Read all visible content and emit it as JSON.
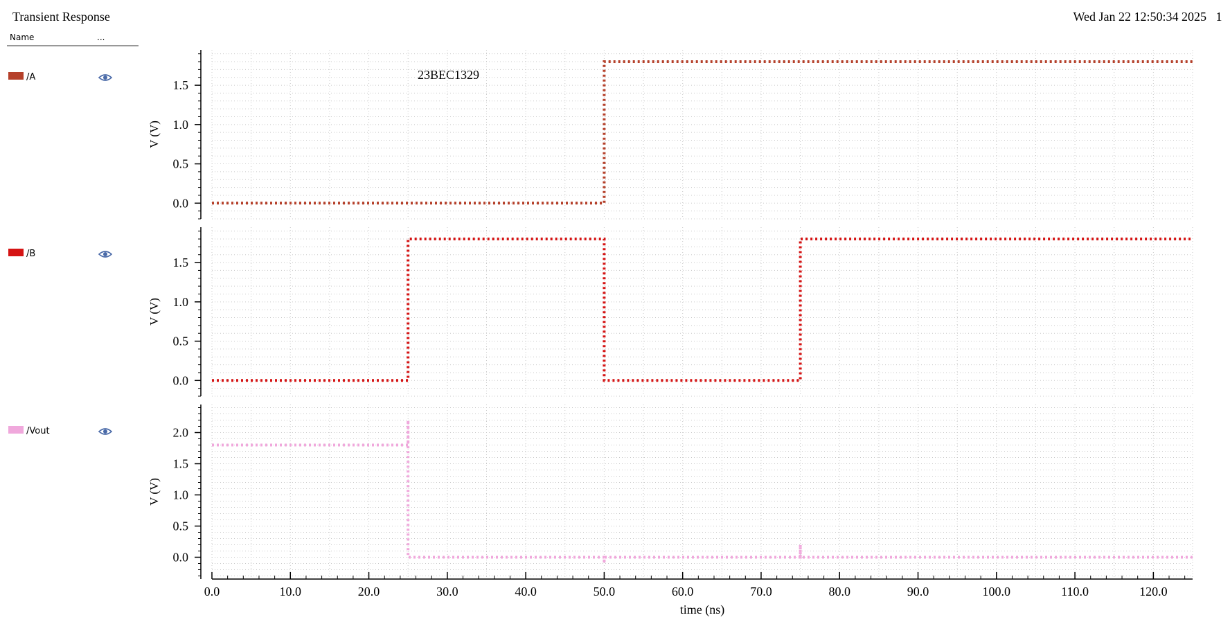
{
  "window": {
    "title": "Transient Response",
    "timestamp": "Wed Jan 22 12:50:34 2025",
    "page_number": "1"
  },
  "legend_header": {
    "name_label": "Name",
    "more_label": "..."
  },
  "annotation": "23BEC1329",
  "colors": {
    "A": "#b5402a",
    "B": "#d51414",
    "Vout": "#f0a8dc",
    "grid": "#c8c8c8",
    "axis": "#000000",
    "eye": "#4a6aa8"
  },
  "chart_data": [
    {
      "type": "line",
      "series": [
        {
          "name": "/A",
          "x": [
            0,
            50,
            50,
            125
          ],
          "y": [
            0,
            0,
            1.8,
            1.8
          ]
        }
      ],
      "ylabel": "V (V)",
      "xlim": [
        0,
        125
      ],
      "ylim": [
        -0.2,
        1.95
      ],
      "yticks": [
        0.0,
        0.5,
        1.0,
        1.5
      ],
      "ytick_labels": [
        "0.0",
        "0.5",
        "1.0",
        "1.5"
      ],
      "grid": true
    },
    {
      "type": "line",
      "series": [
        {
          "name": "/B",
          "x": [
            0,
            25,
            25,
            50,
            50,
            75,
            75,
            125
          ],
          "y": [
            0,
            0,
            1.8,
            1.8,
            0,
            0,
            1.8,
            1.8
          ]
        }
      ],
      "ylabel": "V (V)",
      "xlim": [
        0,
        125
      ],
      "ylim": [
        -0.2,
        1.95
      ],
      "yticks": [
        0.0,
        0.5,
        1.0,
        1.5
      ],
      "ytick_labels": [
        "0.0",
        "0.5",
        "1.0",
        "1.5"
      ],
      "grid": true
    },
    {
      "type": "line",
      "series": [
        {
          "name": "/Vout",
          "x": [
            0,
            25,
            25,
            25,
            25.05,
            50,
            50,
            50,
            50.1,
            75,
            75,
            75,
            75.1,
            125
          ],
          "y": [
            1.8,
            1.8,
            2.2,
            0.0,
            0.0,
            0.0,
            -0.1,
            0.0,
            0.0,
            0.0,
            0.2,
            0.0,
            0.0,
            0.0
          ]
        }
      ],
      "ylabel": "V (V)",
      "xlabel": "time (ns)",
      "xlim": [
        0,
        125
      ],
      "ylim": [
        -0.35,
        2.45
      ],
      "yticks": [
        0.0,
        0.5,
        1.0,
        1.5,
        2.0
      ],
      "ytick_labels": [
        "0.0",
        "0.5",
        "1.0",
        "1.5",
        "2.0"
      ],
      "xticks": [
        0,
        10,
        20,
        30,
        40,
        50,
        60,
        70,
        80,
        90,
        100,
        110,
        120
      ],
      "xtick_labels": [
        "0.0",
        "10.0",
        "20.0",
        "30.0",
        "40.0",
        "50.0",
        "60.0",
        "70.0",
        "80.0",
        "90.0",
        "100.0",
        "110.0",
        "120.0"
      ],
      "grid": true
    }
  ]
}
